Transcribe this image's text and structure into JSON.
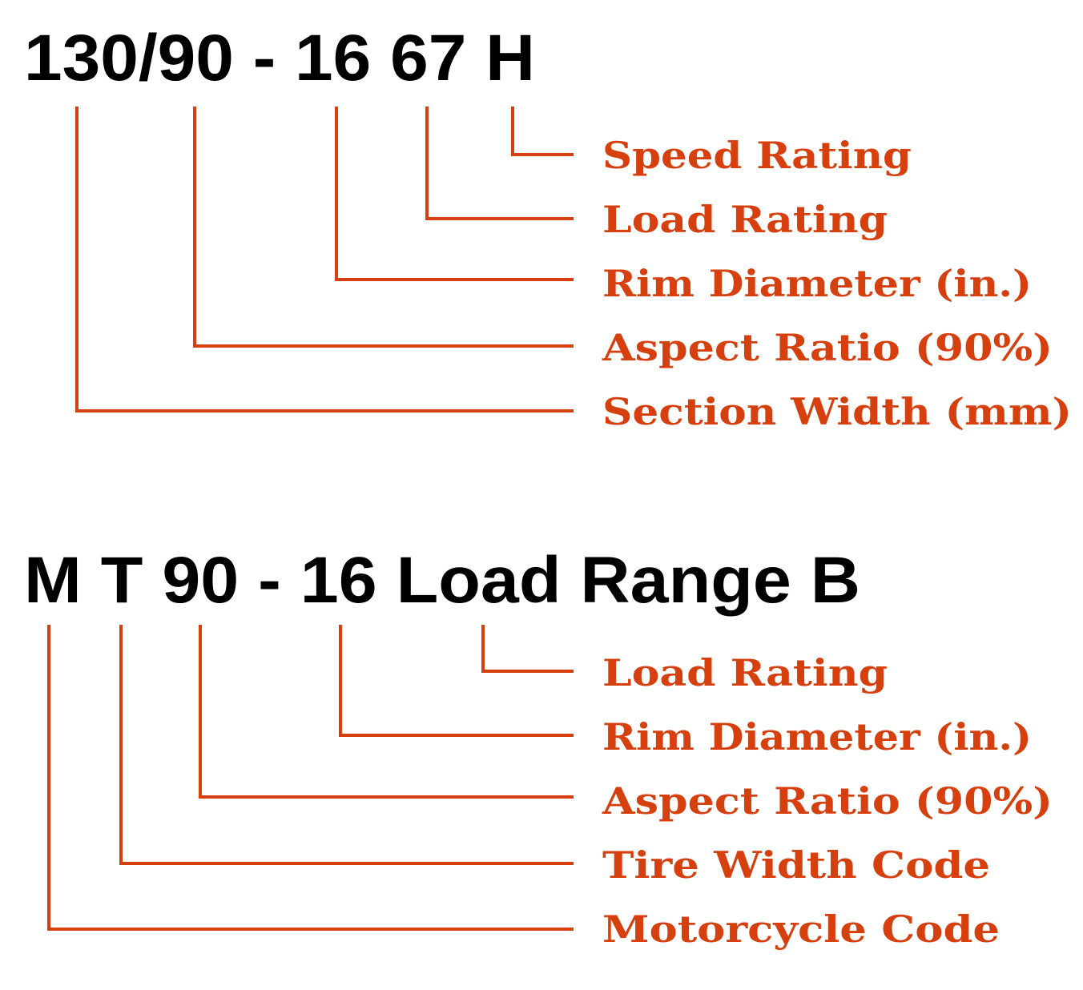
{
  "accent_color": "#d6400e",
  "diagrams": [
    {
      "code": "130/90 - 16 67 H",
      "labels": [
        "Speed Rating",
        "Load Rating",
        "Rim Diameter (in.)",
        "Aspect Ratio (90%)",
        "Section Width (mm)"
      ]
    },
    {
      "code": "M T 90 - 16 Load Range B",
      "labels": [
        "Load Rating",
        "Rim Diameter (in.)",
        "Aspect Ratio (90%)",
        "Tire Width Code",
        "Motorcycle Code"
      ]
    }
  ]
}
